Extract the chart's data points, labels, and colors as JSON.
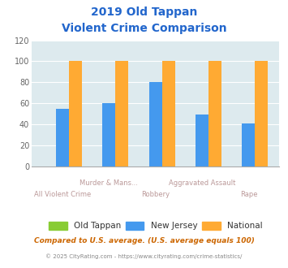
{
  "title_line1": "2019 Old Tappan",
  "title_line2": "Violent Crime Comparison",
  "categories": [
    "All Violent Crime",
    "Murder & Mans...",
    "Robbery",
    "Aggravated Assault",
    "Rape"
  ],
  "series": {
    "Old Tappan": [
      0,
      0,
      0,
      0,
      0
    ],
    "New Jersey": [
      55,
      60,
      80,
      49,
      41
    ],
    "National": [
      100,
      100,
      100,
      100,
      100
    ]
  },
  "colors": {
    "Old Tappan": "#88cc33",
    "New Jersey": "#4499ee",
    "National": "#ffaa33"
  },
  "ylim": [
    0,
    120
  ],
  "yticks": [
    0,
    20,
    40,
    60,
    80,
    100,
    120
  ],
  "bg_color": "#ddeaee",
  "title_color": "#2266cc",
  "axis_label_color": "#bb9999",
  "footer_text": "Compared to U.S. average. (U.S. average equals 100)",
  "copyright_text": "© 2025 CityRating.com - https://www.cityrating.com/crime-statistics/",
  "footer_color": "#cc6600",
  "copyright_color": "#888888",
  "bar_width": 0.28
}
